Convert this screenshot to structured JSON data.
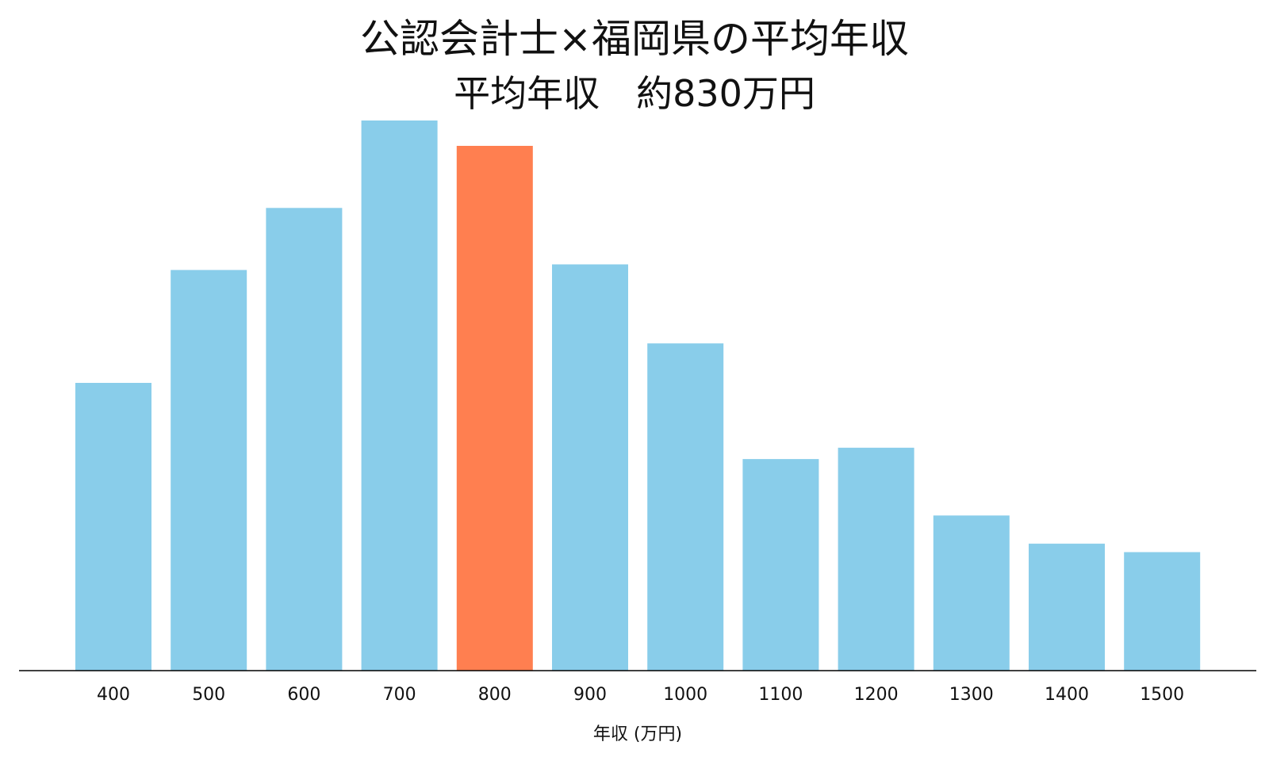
{
  "chart_data": {
    "type": "bar",
    "title": "公認会計士×福岡県の平均年収",
    "subtitle": "平均年収　約830万円",
    "xlabel": "年収 (万円)",
    "ylabel": "",
    "categories": [
      "400",
      "500",
      "600",
      "700",
      "800",
      "900",
      "1000",
      "1100",
      "1200",
      "1300",
      "1400",
      "1500"
    ],
    "values": [
      10.2,
      14.2,
      16.4,
      19.5,
      18.6,
      14.4,
      11.6,
      7.5,
      7.9,
      5.5,
      4.5,
      4.2
    ],
    "ylim": [
      0,
      19.5
    ],
    "highlight_index": 4,
    "grid": false,
    "legend": "none",
    "colors": {
      "bar": "#89CDEA",
      "highlight": "#FF7F50",
      "axis": "#000000"
    }
  }
}
